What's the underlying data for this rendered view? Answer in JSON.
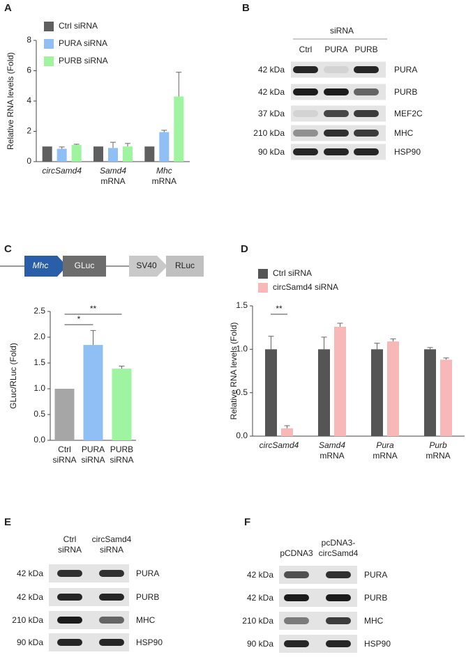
{
  "panel_labels": [
    "A",
    "B",
    "C",
    "D",
    "E",
    "F"
  ],
  "chart_data": [
    {
      "type": "bar",
      "ylabel": "Relative RNA levels (Fold)",
      "categories": [
        [
          "circSamd4"
        ],
        [
          "Samd4",
          "mRNA"
        ],
        [
          "Mhc",
          "mRNA"
        ]
      ],
      "category_style": "italic-first-line",
      "series": [
        {
          "name": "Ctrl siRNA",
          "color": "#5f5f5f",
          "values": [
            1,
            1,
            1
          ]
        },
        {
          "name": "PURA siRNA",
          "color": "#8fbff5",
          "values": [
            0.85,
            0.9,
            1.95
          ],
          "errors": [
            0.12,
            0.38,
            0.12
          ]
        },
        {
          "name": "PURB siRNA",
          "color": "#9ff59f",
          "values": [
            1.1,
            1.0,
            4.3
          ],
          "errors": [
            0.05,
            0.2,
            1.6
          ]
        }
      ],
      "ylim": [
        0,
        8
      ],
      "yticks": [
        0,
        2,
        4,
        6,
        8
      ],
      "legend": "top-left"
    },
    {
      "type": "bar",
      "ylabel": "GLuc/RLuc (Fold)",
      "categories": [
        [
          "Ctrl",
          "siRNA"
        ],
        [
          "PURA",
          "siRNA"
        ],
        [
          "PURB",
          "siRNA"
        ]
      ],
      "values": [
        1.0,
        1.85,
        1.39
      ],
      "errors": [
        null,
        0.28,
        0.05
      ],
      "colors": [
        "#a6a6a6",
        "#8fbff5",
        "#9ff59f"
      ],
      "ylim": [
        0,
        2.5
      ],
      "yticks": [
        {
          "value": 0,
          "label": "0.0"
        },
        0.5,
        {
          "value": 1,
          "label": "1.0"
        },
        1.5,
        {
          "value": 2,
          "label": "2.0"
        },
        2.5
      ],
      "annotations": [
        "*",
        "**"
      ]
    },
    {
      "type": "bar",
      "ylabel": "Relative RNA levels (Fold)",
      "categories": [
        [
          "circSamd4"
        ],
        [
          "Samd4",
          "mRNA"
        ],
        [
          "Pura",
          "mRNA"
        ],
        [
          "Purb",
          "mRNA"
        ]
      ],
      "category_style": "italic-first-line",
      "series": [
        {
          "name": "Ctrl siRNA",
          "color": "#555555",
          "values": [
            1,
            1,
            1,
            1
          ],
          "errors": [
            0.15,
            0.14,
            0.07,
            0.02
          ]
        },
        {
          "name": "circSamd4 siRNA",
          "color": "#f9b8b8",
          "values": [
            0.09,
            1.26,
            1.09,
            0.88
          ],
          "errors": [
            0.03,
            0.04,
            0.03,
            0.02
          ]
        }
      ],
      "ylim": [
        0,
        1.5
      ],
      "yticks": [
        {
          "value": 0,
          "label": "0.0"
        },
        0.5,
        {
          "value": 1,
          "label": "1.0"
        },
        1.5
      ],
      "legend": "top-left",
      "annotations": [
        "**"
      ]
    }
  ],
  "construct": {
    "promoter": "Mhc",
    "reporter": "GLuc",
    "control_promoter": "SV40",
    "control_reporter": "RLuc"
  },
  "blots": [
    {
      "header": "siRNA",
      "lanes": [
        [
          "Ctrl"
        ],
        [
          "PURA"
        ],
        [
          "PURB"
        ]
      ],
      "rows": [
        {
          "size": "42 kDa",
          "protein": "PURA"
        },
        {
          "size": "42 kDa",
          "protein": "PURB"
        },
        {
          "size": "37 kDa",
          "protein": "MEF2C"
        },
        {
          "size": "210 kDa",
          "protein": "MHC"
        },
        {
          "size": "90 kDa",
          "protein": "HSP90"
        }
      ]
    },
    {
      "lanes": [
        [
          "Ctrl",
          "siRNA"
        ],
        [
          "circSamd4",
          "siRNA"
        ]
      ],
      "rows": [
        {
          "size": "42 kDa",
          "protein": "PURA"
        },
        {
          "size": "42 kDa",
          "protein": "PURB"
        },
        {
          "size": "210 kDa",
          "protein": "MHC"
        },
        {
          "size": "90 kDa",
          "protein": "HSP90"
        }
      ]
    },
    {
      "lanes": [
        [
          "pCDNA3"
        ],
        [
          "pcDNA3-",
          "circSamd4"
        ]
      ],
      "rows": [
        {
          "size": "42 kDa",
          "protein": "PURA"
        },
        {
          "size": "42 kDa",
          "protein": "PURB"
        },
        {
          "size": "210 kDa",
          "protein": "MHC"
        },
        {
          "size": "90 kDa",
          "protein": "HSP90"
        }
      ]
    }
  ]
}
